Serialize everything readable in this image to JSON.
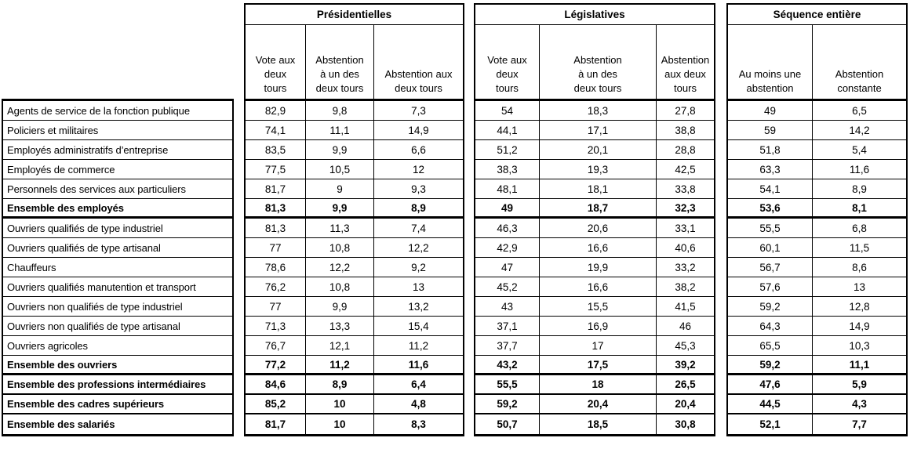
{
  "colors": {
    "background": "#ffffff",
    "text": "#000000",
    "border": "#000000"
  },
  "chart_data": {
    "type": "table",
    "groups": [
      {
        "title": "Présidentielles",
        "columns": [
          "Vote aux\ndeux\ntours",
          "Abstention\nà un des\ndeux tours",
          "Abstention aux\ndeux tours"
        ]
      },
      {
        "title": "Législatives",
        "columns": [
          "Vote aux\ndeux\ntours",
          "Abstention\nà un des\ndeux tours",
          "Abstention\naux deux\ntours"
        ]
      },
      {
        "title": "Séquence entière",
        "columns": [
          "Au moins une\nabstention",
          "Abstention\nconstante"
        ]
      }
    ],
    "rows": [
      {
        "label": "Agents de service de la fonction publique",
        "bold": false,
        "values": [
          "82,9",
          "9,8",
          "7,3",
          "54",
          "18,3",
          "27,8",
          "49",
          "6,5"
        ]
      },
      {
        "label": "Policiers et militaires",
        "bold": false,
        "values": [
          "74,1",
          "11,1",
          "14,9",
          "44,1",
          "17,1",
          "38,8",
          "59",
          "14,2"
        ]
      },
      {
        "label": "Employés administratifs d’entreprise",
        "bold": false,
        "values": [
          "83,5",
          "9,9",
          "6,6",
          "51,2",
          "20,1",
          "28,8",
          "51,8",
          "5,4"
        ]
      },
      {
        "label": "Employés de commerce",
        "bold": false,
        "values": [
          "77,5",
          "10,5",
          "12",
          "38,3",
          "19,3",
          "42,5",
          "63,3",
          "11,6"
        ]
      },
      {
        "label": "Personnels des services aux particuliers",
        "bold": false,
        "values": [
          "81,7",
          "9",
          "9,3",
          "48,1",
          "18,1",
          "33,8",
          "54,1",
          "8,9"
        ]
      },
      {
        "label": "Ensemble des employés",
        "bold": true,
        "values": [
          "81,3",
          "9,9",
          "8,9",
          "49",
          "18,7",
          "32,3",
          "53,6",
          "8,1"
        ]
      },
      {
        "label": "Ouvriers qualifiés de type industriel",
        "bold": false,
        "values": [
          "81,3",
          "11,3",
          "7,4",
          "46,3",
          "20,6",
          "33,1",
          "55,5",
          "6,8"
        ]
      },
      {
        "label": "Ouvriers qualifiés de type artisanal",
        "bold": false,
        "values": [
          "77",
          "10,8",
          "12,2",
          "42,9",
          "16,6",
          "40,6",
          "60,1",
          "11,5"
        ]
      },
      {
        "label": "Chauffeurs",
        "bold": false,
        "values": [
          "78,6",
          "12,2",
          "9,2",
          "47",
          "19,9",
          "33,2",
          "56,7",
          "8,6"
        ]
      },
      {
        "label": "Ouvriers qualifiés manutention et transport",
        "bold": false,
        "values": [
          "76,2",
          "10,8",
          "13",
          "45,2",
          "16,6",
          "38,2",
          "57,6",
          "13"
        ]
      },
      {
        "label": "Ouvriers non qualifiés de type industriel",
        "bold": false,
        "values": [
          "77",
          "9,9",
          "13,2",
          "43",
          "15,5",
          "41,5",
          "59,2",
          "12,8"
        ]
      },
      {
        "label": "Ouvriers non qualifiés de type artisanal",
        "bold": false,
        "values": [
          "71,3",
          "13,3",
          "15,4",
          "37,1",
          "16,9",
          "46",
          "64,3",
          "14,9"
        ]
      },
      {
        "label": "Ouvriers agricoles",
        "bold": false,
        "values": [
          "76,7",
          "12,1",
          "11,2",
          "37,7",
          "17",
          "45,3",
          "65,5",
          "10,3"
        ]
      },
      {
        "label": "Ensemble des ouvriers",
        "bold": true,
        "values": [
          "77,2",
          "11,2",
          "11,6",
          "43,2",
          "17,5",
          "39,2",
          "59,2",
          "11,1"
        ]
      },
      {
        "label": "Ensemble des professions intermédiaires",
        "bold": true,
        "values": [
          "84,6",
          "8,9",
          "6,4",
          "55,5",
          "18",
          "26,5",
          "47,6",
          "5,9"
        ]
      },
      {
        "label": "Ensemble des cadres supérieurs",
        "bold": true,
        "values": [
          "85,2",
          "10",
          "4,8",
          "59,2",
          "20,4",
          "20,4",
          "44,5",
          "4,3"
        ]
      },
      {
        "label": "Ensemble des salariés",
        "bold": true,
        "values": [
          "81,7",
          "10",
          "8,3",
          "50,7",
          "18,5",
          "30,8",
          "52,1",
          "7,7"
        ]
      }
    ]
  }
}
